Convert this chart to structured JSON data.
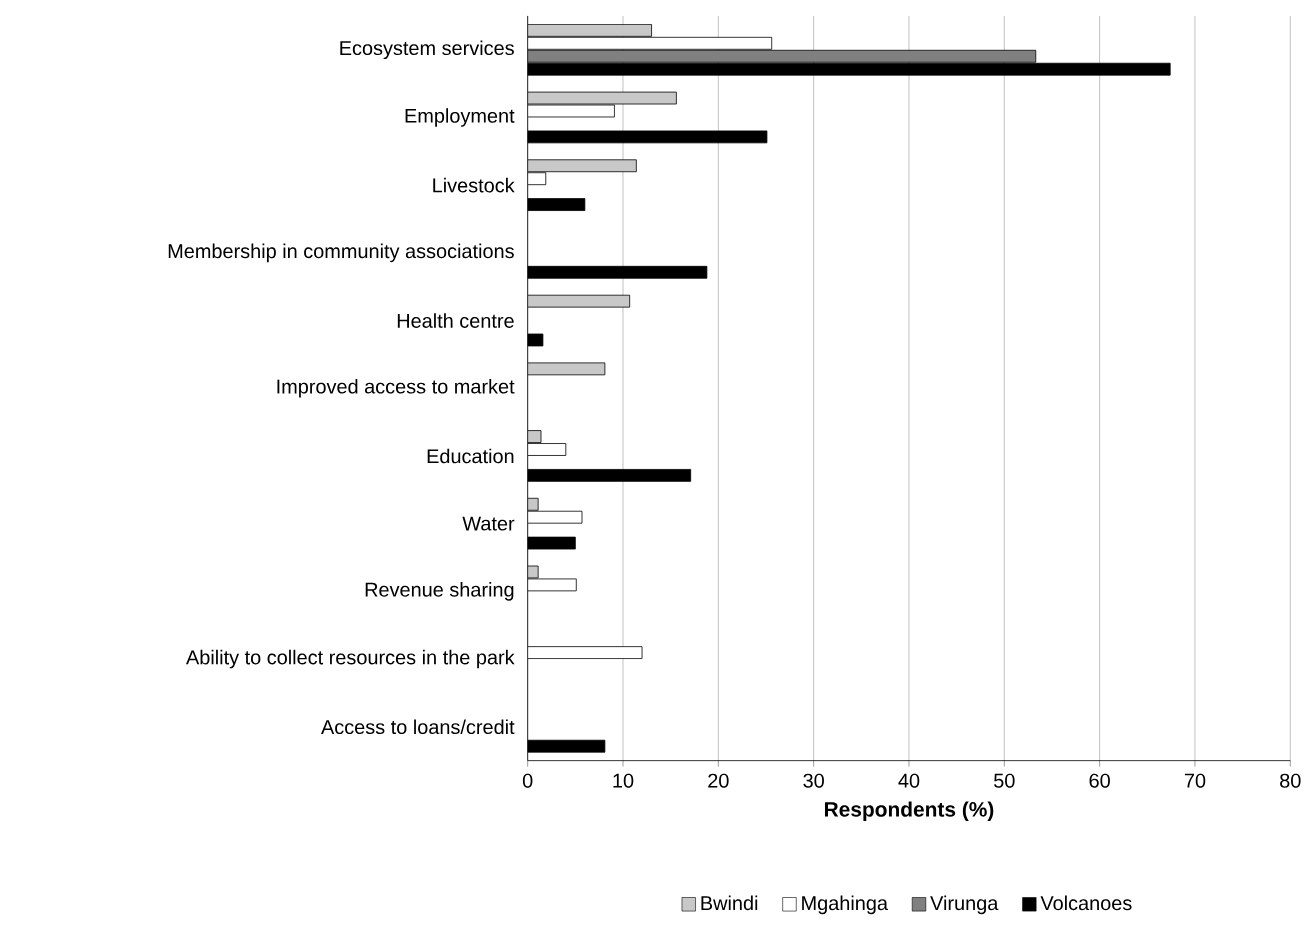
{
  "chart_data": {
    "type": "bar",
    "orientation": "horizontal",
    "xlabel": "Respondents (%)",
    "categories": [
      "Ecosystem services",
      "Employment",
      "Livestock",
      "Membership in community associations",
      "Health centre",
      "Improved access to market",
      "Education",
      "Water",
      "Revenue sharing",
      "Ability to collect resources in the park",
      "Access to loans/credit"
    ],
    "series": [
      {
        "name": "Bwindi",
        "color": "#c8c8c8",
        "values": [
          13.0,
          15.6,
          11.4,
          null,
          10.7,
          8.1,
          1.4,
          1.1,
          1.1,
          null,
          null
        ]
      },
      {
        "name": "Mgahinga",
        "color": "#ffffff",
        "values": [
          25.6,
          9.1,
          1.9,
          null,
          null,
          null,
          4.0,
          5.7,
          5.1,
          12.0,
          null
        ]
      },
      {
        "name": "Virunga",
        "color": "#808080",
        "values": [
          53.3,
          null,
          null,
          null,
          null,
          null,
          null,
          null,
          null,
          null,
          null
        ]
      },
      {
        "name": "Volcanoes",
        "color": "#000000",
        "values": [
          67.4,
          25.1,
          6.0,
          18.8,
          1.6,
          null,
          17.1,
          5.0,
          null,
          null,
          8.1
        ]
      }
    ],
    "xlim": [
      0,
      80
    ],
    "xticks": [
      0,
      10,
      20,
      30,
      40,
      50,
      60,
      70,
      80
    ],
    "grid": "x",
    "legend": "bottom"
  }
}
